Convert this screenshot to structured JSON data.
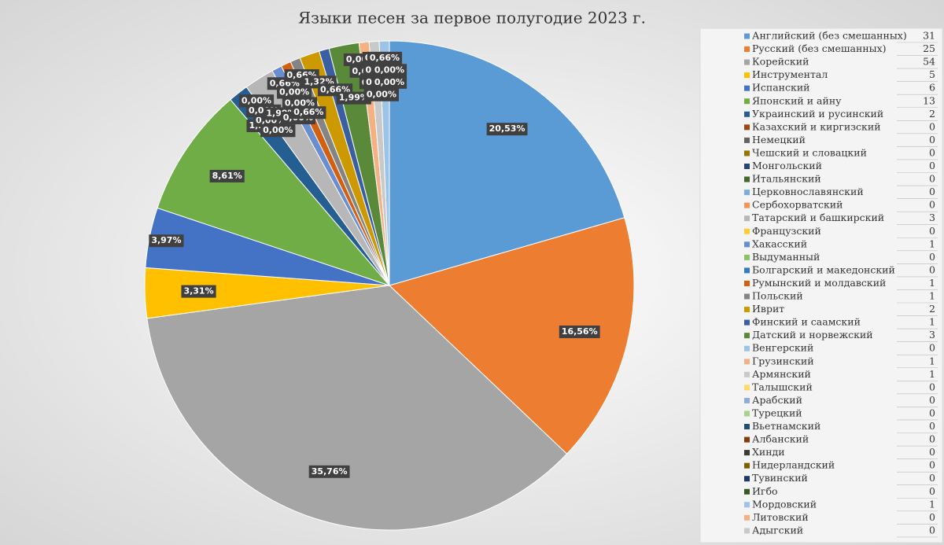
{
  "chart_data": {
    "type": "pie",
    "title": "Языки песен за первое полугодие 2023 г.",
    "categories": [
      "Английский (без смешанных)",
      "Русский (без смешанных)",
      "Корейский",
      "Инструментал",
      "Испанский",
      "Японский и айну",
      "Украинский и русинский",
      "Казахский и киргизский",
      "Немецкий",
      "Чешский и словацкий",
      "Монгольский",
      "Итальянский",
      "Церковнославянский",
      "Сербохорватский",
      "Татарский и башкирский",
      "Французский",
      "Хакасский",
      "Выдуманный",
      "Болгарский и македонский",
      "Румынский и молдавский",
      "Польский",
      "Иврит",
      "Финский и саамский",
      "Датский и норвежский",
      "Венгерский",
      "Грузинский",
      "Армянский",
      "Талышский",
      "Арабский",
      "Турецкий",
      "Вьетнамский",
      "Албанский",
      "Хинди",
      "Нидерландский",
      "Тувинский",
      "Игбо",
      "Мордовский",
      "Литовский",
      "Адыгский"
    ],
    "values": [
      31,
      25,
      54,
      5,
      6,
      13,
      2,
      0,
      0,
      0,
      0,
      0,
      0,
      0,
      3,
      0,
      1,
      0,
      0,
      1,
      1,
      2,
      1,
      3,
      0,
      1,
      1,
      0,
      0,
      0,
      0,
      0,
      0,
      0,
      0,
      0,
      1,
      0,
      0
    ],
    "value_labels": [
      "20,53%",
      "16,56%",
      "35,76%",
      "3,31%",
      "3,97%",
      "8,61%",
      "1,32%",
      "0,00%",
      "0,00%",
      "0,00%",
      "0,00%",
      "0,00%",
      "0,00%",
      "0,00%",
      "1,99%",
      "0,00%",
      "0,66%",
      "0,00%",
      "0,00%",
      "0,66%",
      "0,66%",
      "1,32%",
      "0,66%",
      "1,99%",
      "0,00%",
      "0,66%",
      "0,66%",
      "0,00%",
      "0,00%",
      "0,00%",
      "0,00%",
      "0,00%",
      "0,00%",
      "0,00%",
      "0,00%",
      "0,00%",
      "0,66%",
      "0,00%",
      "0,00%"
    ],
    "colors": [
      "#5b9bd5",
      "#ed7d31",
      "#a5a5a5",
      "#ffc000",
      "#4472c4",
      "#70ad47",
      "#255e91",
      "#9e480e",
      "#636363",
      "#997300",
      "#264478",
      "#43682b",
      "#7cafdd",
      "#f1975a",
      "#b7b7b7",
      "#ffcd33",
      "#698ed0",
      "#8cc168",
      "#327dc2",
      "#d26012",
      "#848484",
      "#cc9a00",
      "#3a5fa0",
      "#5a8a39",
      "#9dc3e6",
      "#f4b183",
      "#c9c9c9",
      "#ffd966",
      "#8faadc",
      "#a9d18e",
      "#1f4e79",
      "#843c0c",
      "#3a3a3a",
      "#7f6000",
      "#203864",
      "#385723",
      "#9dc3e6",
      "#f4b183",
      "#c9c9c9"
    ],
    "legend": "right"
  }
}
